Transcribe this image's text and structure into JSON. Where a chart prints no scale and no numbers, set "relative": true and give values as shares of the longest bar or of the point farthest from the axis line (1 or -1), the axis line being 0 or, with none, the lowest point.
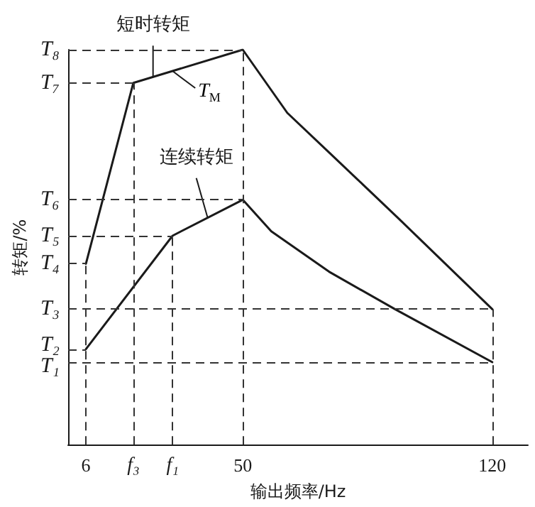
{
  "chart_data": {
    "type": "line",
    "xlabel": "输出频率/Hz",
    "ylabel": "转矩/%",
    "xlim": [
      1,
      130
    ],
    "xticks": [
      6,
      {
        "value": 19.3,
        "label": "f₃"
      },
      {
        "value": 30.3,
        "label": "f₁"
      },
      50,
      120
    ],
    "relative": true,
    "series": [
      {
        "name": "短时转矩",
        "color": "#1a1a1a",
        "x": [
          6,
          19.3,
          50,
          62.5,
          74.2,
          93.8,
          120
        ],
        "values": [
          0.458,
          0.916,
          1,
          0.84,
          0.74,
          0.572,
          0.343
        ]
      },
      {
        "name": "连续转矩",
        "color": "#1a1a1a",
        "x": [
          6,
          30.3,
          50,
          58,
          74.2,
          92.7,
          120
        ],
        "values": [
          0.242,
          0.529,
          0.62,
          0.54,
          0.438,
          0.343,
          0.209
        ]
      }
    ],
    "ref_lines": [
      {
        "axis": "y",
        "value": 1,
        "label": "T₈",
        "line_style": "dashed"
      },
      {
        "axis": "y",
        "value": 0.916,
        "label": "T₇",
        "line_style": "dashed"
      },
      {
        "axis": "y",
        "value": 0.62,
        "label": "T₆",
        "line_style": "dashed"
      },
      {
        "axis": "y",
        "value": 0.529,
        "label": "T₅",
        "line_style": "dashed"
      },
      {
        "axis": "y",
        "value": 0.458,
        "label": "T₄",
        "line_style": "dashed"
      },
      {
        "axis": "y",
        "value": 0.343,
        "label": "T₃",
        "line_style": "dashed"
      },
      {
        "axis": "y",
        "value": 0.242,
        "label": "T₂",
        "line_style": "dashed"
      },
      {
        "axis": "y",
        "value": 0.209,
        "label": "T₁",
        "line_style": "dashed"
      },
      {
        "axis": "x",
        "value": 6,
        "line_style": "dashed"
      },
      {
        "axis": "x",
        "value": 19.3,
        "line_style": "dashed"
      },
      {
        "axis": "x",
        "value": 30.3,
        "line_style": "dashed"
      },
      {
        "axis": "x",
        "value": 50,
        "line_style": "dashed"
      },
      {
        "axis": "x",
        "value": 120,
        "line_style": "dashed"
      }
    ],
    "annotations": [
      {
        "text": "T$_{M}$",
        "x": 30.3,
        "y": 0.946
      }
    ],
    "marker": "none",
    "line_style": "solid",
    "grid": false,
    "legend": false
  }
}
